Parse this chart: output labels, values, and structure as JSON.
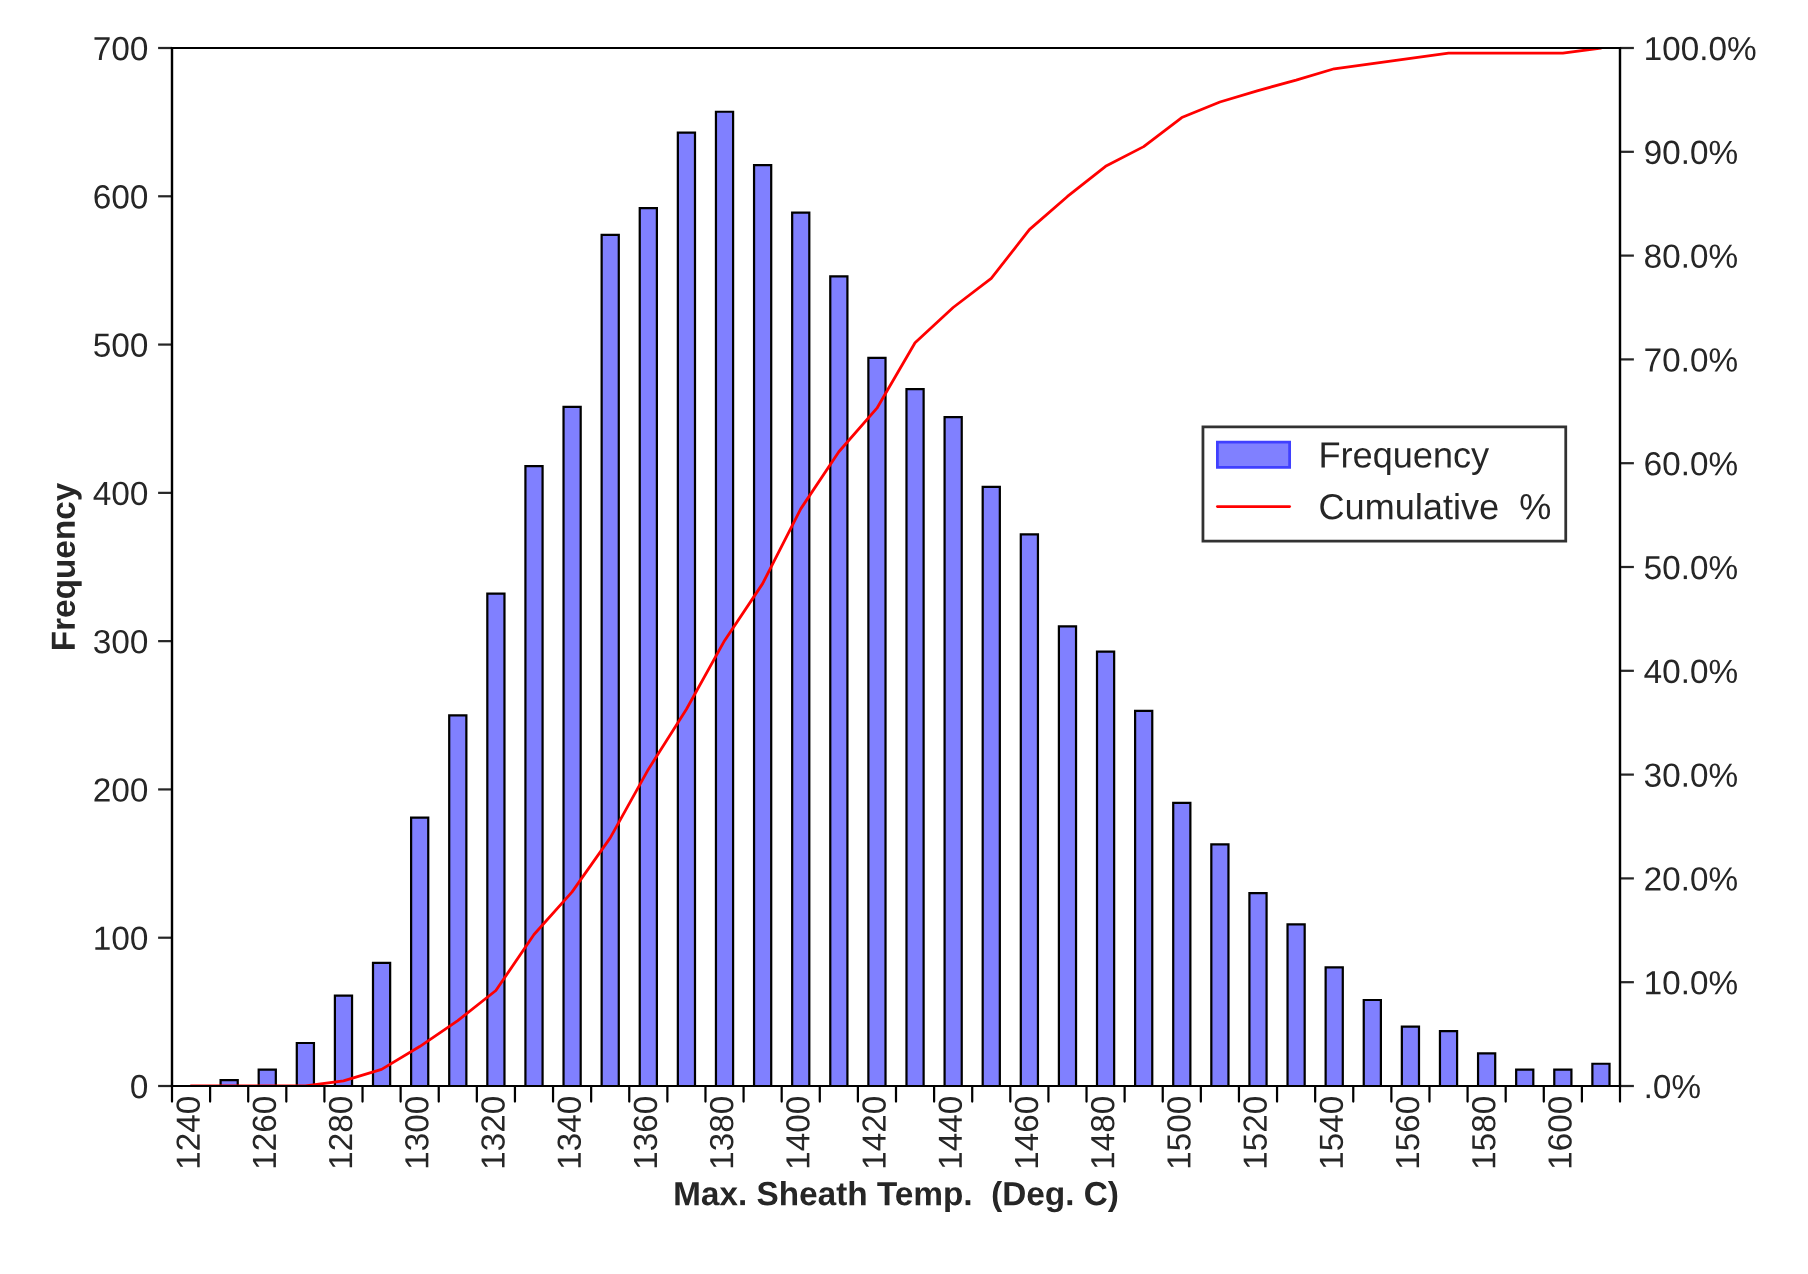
{
  "chart_data": {
    "type": "bar",
    "xlabel": "Max. Sheath Temp.  (Deg. C)",
    "ylabel": "Frequency",
    "categories": [
      "1240",
      null,
      "1260",
      null,
      "1280",
      null,
      "1300",
      null,
      "1320",
      null,
      "1340",
      null,
      "1360",
      null,
      "1380",
      null,
      "1400",
      null,
      "1420",
      null,
      "1440",
      null,
      "1460",
      null,
      "1480",
      null,
      "1500",
      null,
      "1520",
      null,
      "1540",
      null,
      "1560",
      null,
      "1580",
      null,
      "1600",
      null
    ],
    "series": [
      {
        "name": "Frequency",
        "color": "#8080ff",
        "values": [
          0,
          4,
          11,
          29,
          61,
          83,
          181,
          250,
          332,
          418,
          458,
          574,
          592,
          643,
          657,
          621,
          589,
          546,
          491,
          470,
          451,
          404,
          372,
          310,
          293,
          253,
          191,
          163,
          130,
          109,
          80,
          58,
          40,
          37,
          22,
          11,
          11,
          15
        ]
      },
      {
        "name": "Cumulative  %",
        "type": "line",
        "axis": "y2",
        "color": "#ff0000",
        "values": [
          0,
          0,
          0,
          0,
          0.5,
          1.6,
          3.8,
          6.3,
          9.2,
          14.6,
          18.7,
          23.9,
          30.5,
          36.3,
          42.9,
          48.4,
          55.6,
          61.1,
          65.3,
          71.6,
          75,
          77.8,
          82.5,
          85.7,
          88.6,
          90.5,
          93.3,
          94.8,
          95.9,
          96.9,
          98,
          98.5,
          99,
          99.5,
          99.5,
          99.5,
          99.5,
          100
        ]
      }
    ],
    "ylim": [
      0,
      700
    ],
    "yticks": [
      0,
      100,
      200,
      300,
      400,
      500,
      600,
      700
    ],
    "y2lim": [
      0,
      100
    ],
    "y2ticks": [
      {
        "value": 0,
        "label": ".0%"
      },
      {
        "value": 10,
        "label": "10.0%"
      },
      {
        "value": 20,
        "label": "20.0%"
      },
      {
        "value": 30,
        "label": "30.0%"
      },
      {
        "value": 40,
        "label": "40.0%"
      },
      {
        "value": 50,
        "label": "50.0%"
      },
      {
        "value": 60,
        "label": "60.0%"
      },
      {
        "value": 70,
        "label": "70.0%"
      },
      {
        "value": 80,
        "label": "80.0%"
      },
      {
        "value": 90,
        "label": "90.0%"
      },
      {
        "value": 100,
        "label": "100.0%"
      }
    ],
    "legend": "right",
    "grid": false
  }
}
